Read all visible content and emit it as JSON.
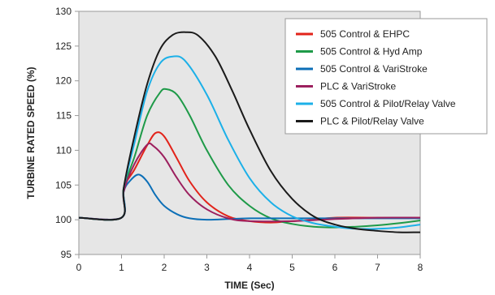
{
  "chart_data": {
    "type": "line",
    "title": "",
    "xlabel": "TIME (Sec)",
    "ylabel": "TURBINE RATED SPEED (%)",
    "xlim": [
      0,
      8
    ],
    "ylim": [
      95,
      130
    ],
    "xticks": [
      "0",
      "1",
      "2",
      "3",
      "4",
      "5",
      "6",
      "7",
      "8"
    ],
    "yticks": [
      "95",
      "100",
      "105",
      "110",
      "115",
      "120",
      "125",
      "130"
    ],
    "grid": false,
    "legend_position": "top-right",
    "series": [
      {
        "name": "505 Control & EHPC",
        "color": "#e2231a",
        "points": [
          [
            0,
            100.3
          ],
          [
            1,
            100.3
          ],
          [
            1.05,
            104.5
          ],
          [
            1.3,
            107.2
          ],
          [
            1.6,
            110.7
          ],
          [
            1.8,
            112.5
          ],
          [
            2.0,
            112.0
          ],
          [
            2.3,
            108.8
          ],
          [
            2.6,
            105.5
          ],
          [
            3.0,
            102.5
          ],
          [
            3.5,
            100.5
          ],
          [
            4.0,
            99.8
          ],
          [
            4.5,
            99.6
          ],
          [
            5.0,
            99.8
          ],
          [
            5.5,
            100.0
          ],
          [
            6.0,
            100.3
          ],
          [
            7.0,
            100.3
          ],
          [
            8.0,
            100.3
          ]
        ]
      },
      {
        "name": "505 Control & Hyd Amp",
        "color": "#1e9a48",
        "points": [
          [
            0,
            100.3
          ],
          [
            1,
            100.3
          ],
          [
            1.05,
            104.5
          ],
          [
            1.3,
            109.0
          ],
          [
            1.6,
            115.0
          ],
          [
            1.9,
            118.3
          ],
          [
            2.05,
            118.8
          ],
          [
            2.3,
            118.0
          ],
          [
            2.6,
            115.0
          ],
          [
            3.0,
            110.0
          ],
          [
            3.5,
            105.0
          ],
          [
            4.0,
            102.0
          ],
          [
            4.5,
            100.2
          ],
          [
            5.0,
            99.4
          ],
          [
            5.5,
            99.0
          ],
          [
            6.0,
            98.9
          ],
          [
            6.5,
            99.0
          ],
          [
            7.0,
            99.2
          ],
          [
            7.5,
            99.5
          ],
          [
            8.0,
            99.9
          ]
        ]
      },
      {
        "name": "505 Control & VariStroke",
        "color": "#0c6fb7",
        "points": [
          [
            0,
            100.3
          ],
          [
            1,
            100.3
          ],
          [
            1.05,
            104.0
          ],
          [
            1.2,
            105.6
          ],
          [
            1.4,
            106.5
          ],
          [
            1.6,
            105.5
          ],
          [
            1.8,
            103.5
          ],
          [
            2.0,
            102.0
          ],
          [
            2.3,
            100.8
          ],
          [
            2.6,
            100.2
          ],
          [
            3.0,
            100.0
          ],
          [
            3.5,
            100.1
          ],
          [
            4.0,
            100.2
          ],
          [
            5.0,
            100.2
          ],
          [
            6.0,
            100.2
          ],
          [
            7.0,
            100.2
          ],
          [
            8.0,
            100.2
          ]
        ]
      },
      {
        "name": "PLC & VariStroke",
        "color": "#9c1f5e",
        "points": [
          [
            0,
            100.3
          ],
          [
            1,
            100.3
          ],
          [
            1.05,
            104.0
          ],
          [
            1.3,
            108.0
          ],
          [
            1.6,
            110.8
          ],
          [
            1.75,
            110.6
          ],
          [
            2.0,
            109.0
          ],
          [
            2.3,
            106.0
          ],
          [
            2.6,
            103.5
          ],
          [
            3.0,
            101.5
          ],
          [
            3.5,
            100.2
          ],
          [
            4.0,
            99.8
          ],
          [
            5.0,
            99.8
          ],
          [
            6.0,
            100.1
          ],
          [
            7.0,
            100.3
          ],
          [
            8.0,
            100.3
          ]
        ]
      },
      {
        "name": "505 Control & Pilot/Relay Valve",
        "color": "#1cb0e8",
        "points": [
          [
            0,
            100.3
          ],
          [
            1,
            100.3
          ],
          [
            1.05,
            104.5
          ],
          [
            1.3,
            111.0
          ],
          [
            1.6,
            118.5
          ],
          [
            1.9,
            122.5
          ],
          [
            2.2,
            123.5
          ],
          [
            2.5,
            122.8
          ],
          [
            3.0,
            118.0
          ],
          [
            3.5,
            111.5
          ],
          [
            4.0,
            106.0
          ],
          [
            4.5,
            102.5
          ],
          [
            5.0,
            100.5
          ],
          [
            5.5,
            99.5
          ],
          [
            6.0,
            99.0
          ],
          [
            6.5,
            98.7
          ],
          [
            7.0,
            98.7
          ],
          [
            7.5,
            98.9
          ],
          [
            8.0,
            99.3
          ]
        ]
      },
      {
        "name": "PLC & Pilot/Relay Valve",
        "color": "#1a1a1a",
        "points": [
          [
            0,
            100.3
          ],
          [
            1,
            100.3
          ],
          [
            1.05,
            104.5
          ],
          [
            1.3,
            112.0
          ],
          [
            1.6,
            119.5
          ],
          [
            1.9,
            124.5
          ],
          [
            2.2,
            126.6
          ],
          [
            2.5,
            127.0
          ],
          [
            2.8,
            126.5
          ],
          [
            3.2,
            123.5
          ],
          [
            3.6,
            118.5
          ],
          [
            4.0,
            113.0
          ],
          [
            4.5,
            107.0
          ],
          [
            5.0,
            103.0
          ],
          [
            5.5,
            100.5
          ],
          [
            6.0,
            99.3
          ],
          [
            6.5,
            98.7
          ],
          [
            7.0,
            98.4
          ],
          [
            7.5,
            98.2
          ],
          [
            8.0,
            98.2
          ]
        ]
      }
    ]
  }
}
